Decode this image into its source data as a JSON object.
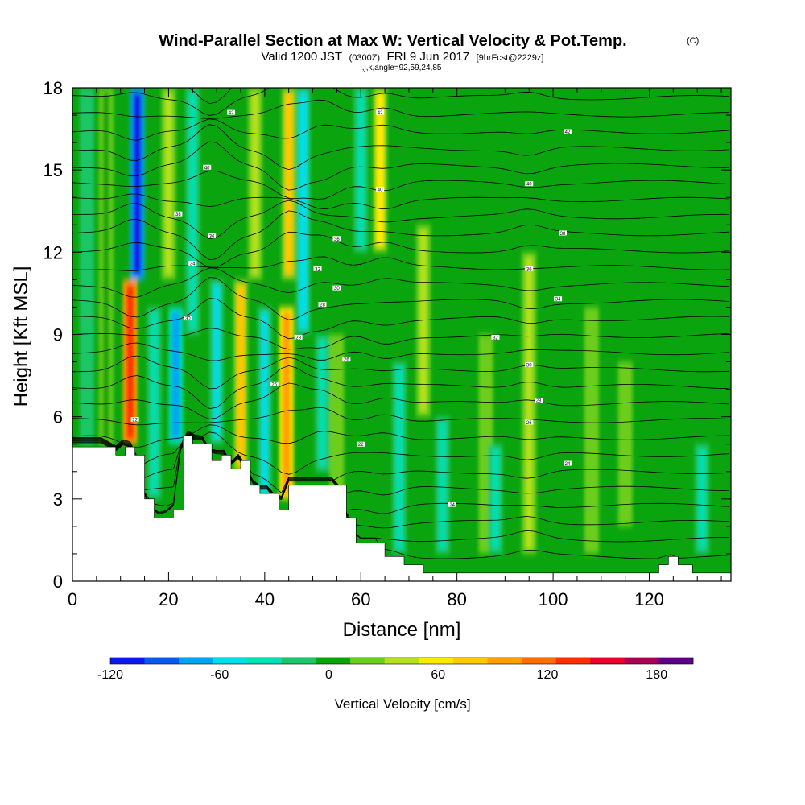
{
  "chart_data": {
    "type": "heatmap",
    "title": "Wind-Parallel Section at Max W: Vertical Velocity & Pot.Temp.",
    "title_mark": "(C)",
    "subtitle_parts": [
      "Valid 1200 JST",
      "(0300Z)",
      "FRI 9 Jun 2017",
      "[9hrFcst@2229z]"
    ],
    "subtitle2": "i,j,k,angle=92,59,24,85",
    "xlabel": "Distance [nm]",
    "ylabel": "Height [Kft MSL]",
    "xlim": [
      0,
      137
    ],
    "ylim": [
      0,
      18
    ],
    "x_ticks": [
      0,
      20,
      40,
      60,
      80,
      100,
      120
    ],
    "y_ticks": [
      0,
      3,
      6,
      9,
      12,
      15,
      18
    ],
    "colorbar": {
      "label": "Vertical Velocity [cm/s]",
      "range": [
        -120,
        200
      ],
      "step": 20,
      "tick_values": [
        -120,
        -60,
        0,
        60,
        120,
        180
      ],
      "colors": [
        "#0c1ae8",
        "#0b58ee",
        "#00a5f2",
        "#00dfe8",
        "#00e0b4",
        "#1ec566",
        "#0aa50e",
        "#6ccd1e",
        "#b5e21c",
        "#ffeb00",
        "#ffc800",
        "#ffa000",
        "#ff6e00",
        "#ff3000",
        "#e6002a",
        "#a80055",
        "#5a0084"
      ]
    },
    "vertical_velocity_columns": [
      {
        "x": 3,
        "w": -10,
        "zmin": 5,
        "zmax": 18
      },
      {
        "x": 7,
        "w": 5,
        "zmin": 5,
        "zmax": 18
      },
      {
        "x": 12,
        "w": 150,
        "zmin": 5,
        "zmax": 11
      },
      {
        "x": 13.5,
        "w": -110,
        "zmin": 11,
        "zmax": 18
      },
      {
        "x": 17,
        "w": -40,
        "zmin": 3,
        "zmax": 10
      },
      {
        "x": 20,
        "w": 50,
        "zmin": 11,
        "zmax": 18
      },
      {
        "x": 21.5,
        "w": -70,
        "zmin": 5,
        "zmax": 10
      },
      {
        "x": 25,
        "w": -30,
        "zmin": 9,
        "zmax": 18
      },
      {
        "x": 30,
        "w": -50,
        "zmin": 5,
        "zmax": 11
      },
      {
        "x": 35,
        "w": 80,
        "zmin": 4,
        "zmax": 11
      },
      {
        "x": 38,
        "w": 40,
        "zmin": 11,
        "zmax": 18
      },
      {
        "x": 40,
        "w": -50,
        "zmin": 3,
        "zmax": 10
      },
      {
        "x": 44.5,
        "w": 110,
        "zmin": 3,
        "zmax": 10
      },
      {
        "x": 45,
        "w": 80,
        "zmin": 11,
        "zmax": 18
      },
      {
        "x": 48,
        "w": -60,
        "zmin": 9,
        "zmax": 18
      },
      {
        "x": 52,
        "w": -30,
        "zmin": 4,
        "zmax": 9
      },
      {
        "x": 55,
        "w": 30,
        "zmin": 2,
        "zmax": 9
      },
      {
        "x": 60,
        "w": -40,
        "zmin": 12,
        "zmax": 18
      },
      {
        "x": 64,
        "w": 60,
        "zmin": 12,
        "zmax": 18
      },
      {
        "x": 68,
        "w": -30,
        "zmin": 1,
        "zmax": 8
      },
      {
        "x": 73,
        "w": 40,
        "zmin": 6,
        "zmax": 13
      },
      {
        "x": 77,
        "w": -40,
        "zmin": 1,
        "zmax": 6
      },
      {
        "x": 86,
        "w": 30,
        "zmin": 1,
        "zmax": 9
      },
      {
        "x": 88,
        "w": -40,
        "zmin": 1,
        "zmax": 5
      },
      {
        "x": 95,
        "w": 40,
        "zmin": 1,
        "zmax": 12
      },
      {
        "x": 108,
        "w": 30,
        "zmin": 1,
        "zmax": 10
      },
      {
        "x": 115,
        "w": 20,
        "zmin": 2,
        "zmax": 8
      },
      {
        "x": 131,
        "w": -30,
        "zmin": 1,
        "zmax": 5
      }
    ],
    "terrain_profile": {
      "x": [
        0,
        6,
        9,
        11,
        13,
        15,
        17,
        19,
        21,
        23,
        25,
        27,
        29,
        31,
        33,
        35,
        37,
        39,
        41,
        43,
        45,
        47,
        49,
        51,
        53,
        55,
        57,
        59,
        61,
        63,
        65,
        67,
        69,
        71,
        73,
        75,
        78,
        81,
        84,
        87,
        90,
        95,
        100,
        105,
        110,
        115,
        120,
        122,
        124,
        126,
        129,
        132,
        135,
        137
      ],
      "z": [
        4.9,
        4.9,
        4.6,
        4.9,
        4.6,
        3.0,
        2.3,
        2.3,
        2.6,
        5.3,
        5.0,
        5.0,
        4.4,
        4.6,
        4.1,
        4.4,
        3.5,
        3.2,
        3.2,
        2.6,
        3.5,
        3.5,
        3.5,
        3.5,
        3.5,
        3.5,
        2.3,
        1.4,
        1.4,
        1.4,
        0.9,
        0.9,
        0.6,
        0.6,
        0.3,
        0.3,
        0.3,
        0.3,
        0.3,
        0.3,
        0.3,
        0.3,
        0.3,
        0.3,
        0.3,
        0.3,
        0.3,
        0.6,
        0.9,
        0.6,
        0.3,
        0.3,
        0.3,
        0.3
      ]
    },
    "potential_temperature_labels": [
      {
        "x": 13,
        "z": 5.9,
        "text": "22"
      },
      {
        "x": 24,
        "z": 9.6,
        "text": "30"
      },
      {
        "x": 42,
        "z": 7.2,
        "text": "26"
      },
      {
        "x": 47,
        "z": 8.9,
        "text": "28"
      },
      {
        "x": 57,
        "z": 8.1,
        "text": "26"
      },
      {
        "x": 60,
        "z": 5.0,
        "text": "22"
      },
      {
        "x": 79,
        "z": 2.8,
        "text": "24"
      },
      {
        "x": 88,
        "z": 8.9,
        "text": "32"
      },
      {
        "x": 95,
        "z": 7.9,
        "text": "30"
      },
      {
        "x": 97,
        "z": 6.6,
        "text": "28"
      },
      {
        "x": 95,
        "z": 5.8,
        "text": "26"
      },
      {
        "x": 103,
        "z": 4.3,
        "text": "24"
      },
      {
        "x": 101,
        "z": 10.3,
        "text": "34"
      },
      {
        "x": 95,
        "z": 11.4,
        "text": "36"
      },
      {
        "x": 102,
        "z": 12.7,
        "text": "38"
      },
      {
        "x": 95,
        "z": 14.5,
        "text": "40"
      },
      {
        "x": 103,
        "z": 16.4,
        "text": "42"
      },
      {
        "x": 25,
        "z": 11.6,
        "text": "34"
      },
      {
        "x": 29,
        "z": 12.6,
        "text": "36"
      },
      {
        "x": 22,
        "z": 13.4,
        "text": "38"
      },
      {
        "x": 28,
        "z": 15.1,
        "text": "40"
      },
      {
        "x": 33,
        "z": 17.1,
        "text": "42"
      },
      {
        "x": 51,
        "z": 11.4,
        "text": "32"
      },
      {
        "x": 55,
        "z": 10.7,
        "text": "30"
      },
      {
        "x": 52,
        "z": 10.1,
        "text": "28"
      },
      {
        "x": 55,
        "z": 12.5,
        "text": "36"
      },
      {
        "x": 64,
        "z": 14.3,
        "text": "40"
      },
      {
        "x": 64,
        "z": 17.1,
        "text": "42"
      }
    ]
  }
}
